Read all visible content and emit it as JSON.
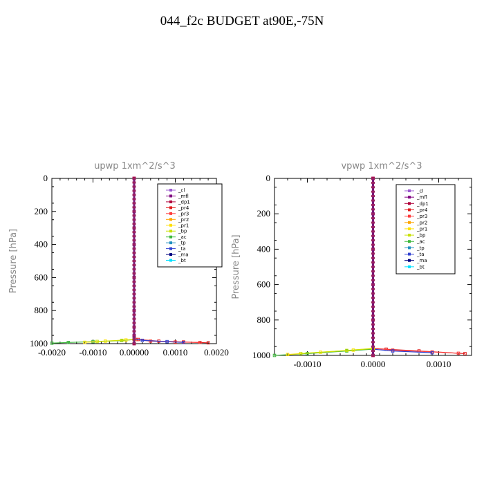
{
  "title": "044_f2c  BUDGET at90E,-75N",
  "legend_items": [
    {
      "label": "_cl",
      "color": "#9b59d0"
    },
    {
      "label": "_mfl",
      "color": "#800080"
    },
    {
      "label": "_dp1",
      "color": "#b0003a"
    },
    {
      "label": "_pr4",
      "color": "#e01a1a"
    },
    {
      "label": "_pr3",
      "color": "#ff3a3a"
    },
    {
      "label": "_pr2",
      "color": "#ffa500"
    },
    {
      "label": "_pr1",
      "color": "#ffe000"
    },
    {
      "label": "_bp",
      "color": "#c8e000"
    },
    {
      "label": "_ac",
      "color": "#3cb83c"
    },
    {
      "label": "_tp",
      "color": "#2090c0"
    },
    {
      "label": "_ta",
      "color": "#3040d0"
    },
    {
      "label": "_ma",
      "color": "#000080"
    },
    {
      "label": "_bt",
      "color": "#00e0ff"
    }
  ],
  "chart_data": [
    {
      "type": "line",
      "title": "upwp   1xm^2/s^3",
      "ylabel": "Pressure [hPa]",
      "xlim": [
        -0.002,
        0.002
      ],
      "ylim": [
        1000,
        0
      ],
      "y_inverted": true,
      "xticks": [
        "-0.0020",
        "-0.0010",
        "0.00000",
        "0.0010",
        "0.0020"
      ],
      "xtick_values": [
        -0.002,
        -0.001,
        0,
        0.001,
        0.002
      ],
      "yticks": [
        "0",
        "200",
        "400",
        "600",
        "800",
        "1000"
      ],
      "ytick_values": [
        0,
        200,
        400,
        600,
        800,
        1000
      ],
      "legend_position": "top-right",
      "series": [
        {
          "name": "_pr4",
          "color": "#e01a1a",
          "x": [
            0,
            0,
            0.0001,
            0.0006,
            0.0012,
            0.0018
          ],
          "y": [
            0,
            960,
            975,
            985,
            990,
            995
          ]
        },
        {
          "name": "_pr3",
          "color": "#ff3a3a",
          "x": [
            0,
            5e-05,
            0.0004,
            0.001,
            0.0016
          ],
          "y": [
            960,
            975,
            985,
            990,
            993
          ]
        },
        {
          "name": "_ta",
          "color": "#3040d0",
          "x": [
            0,
            0.0002,
            0.0008,
            0.0012
          ],
          "y": [
            970,
            980,
            988,
            993
          ]
        },
        {
          "name": "_ac",
          "color": "#3cb83c",
          "x": [
            0,
            -0.0003,
            -0.001,
            -0.0016,
            -0.002
          ],
          "y": [
            975,
            982,
            988,
            993,
            997
          ]
        },
        {
          "name": "_pr1",
          "color": "#ffe000",
          "x": [
            0,
            -0.0002,
            -0.0007,
            -0.0012
          ],
          "y": [
            975,
            978,
            985,
            992
          ]
        },
        {
          "name": "_bp",
          "color": "#c8e000",
          "x": [
            0,
            -0.0003,
            -0.0009
          ],
          "y": [
            975,
            980,
            987
          ]
        },
        {
          "name": "_mfl",
          "color": "#800080",
          "x": [
            0,
            0,
            0,
            0,
            0,
            0,
            0
          ],
          "y": [
            0,
            200,
            400,
            600,
            800,
            950,
            1000
          ]
        },
        {
          "name": "_dp1",
          "color": "#b0003a",
          "x": [
            0,
            0,
            0,
            0,
            0
          ],
          "y": [
            0,
            300,
            600,
            900,
            1000
          ]
        }
      ]
    },
    {
      "type": "line",
      "title": "vpwp   1xm^2/s^3",
      "ylabel": "Pressure [hPa]",
      "xlim": [
        -0.0015,
        0.0015
      ],
      "ylim": [
        1000,
        0
      ],
      "y_inverted": true,
      "xticks": [
        "-0.0010",
        "0.0000",
        "0.0010"
      ],
      "xtick_values": [
        -0.001,
        0,
        0.001
      ],
      "yticks": [
        "0",
        "200",
        "400",
        "600",
        "800",
        "1000"
      ],
      "ytick_values": [
        0,
        200,
        400,
        600,
        800,
        1000
      ],
      "legend_position": "top-right",
      "series": [
        {
          "name": "_pr4",
          "color": "#e01a1a",
          "x": [
            0,
            0,
            0.0002,
            0.0007,
            0.0014
          ],
          "y": [
            0,
            960,
            965,
            975,
            990
          ]
        },
        {
          "name": "_pr3",
          "color": "#ff3a3a",
          "x": [
            0,
            0.0003,
            0.0009,
            0.0013
          ],
          "y": [
            960,
            970,
            980,
            988
          ]
        },
        {
          "name": "_ta",
          "color": "#3040d0",
          "x": [
            0,
            0.0003,
            0.0009
          ],
          "y": [
            965,
            975,
            985
          ]
        },
        {
          "name": "_ac",
          "color": "#3cb83c",
          "x": [
            0,
            -0.0004,
            -0.001,
            -0.0015
          ],
          "y": [
            965,
            975,
            990,
            1000
          ]
        },
        {
          "name": "_pr1",
          "color": "#ffe000",
          "x": [
            0,
            -0.0003,
            -0.0008,
            -0.0013
          ],
          "y": [
            960,
            970,
            982,
            995
          ]
        },
        {
          "name": "_bp",
          "color": "#c8e000",
          "x": [
            0,
            -0.0004,
            -0.0011
          ],
          "y": [
            962,
            972,
            990
          ]
        },
        {
          "name": "_mfl",
          "color": "#800080",
          "x": [
            0,
            0,
            0,
            0,
            0,
            0
          ],
          "y": [
            0,
            200,
            400,
            600,
            800,
            1000
          ]
        },
        {
          "name": "_dp1",
          "color": "#b0003a",
          "x": [
            0,
            0,
            0,
            0
          ],
          "y": [
            0,
            400,
            800,
            1000
          ]
        }
      ]
    }
  ]
}
